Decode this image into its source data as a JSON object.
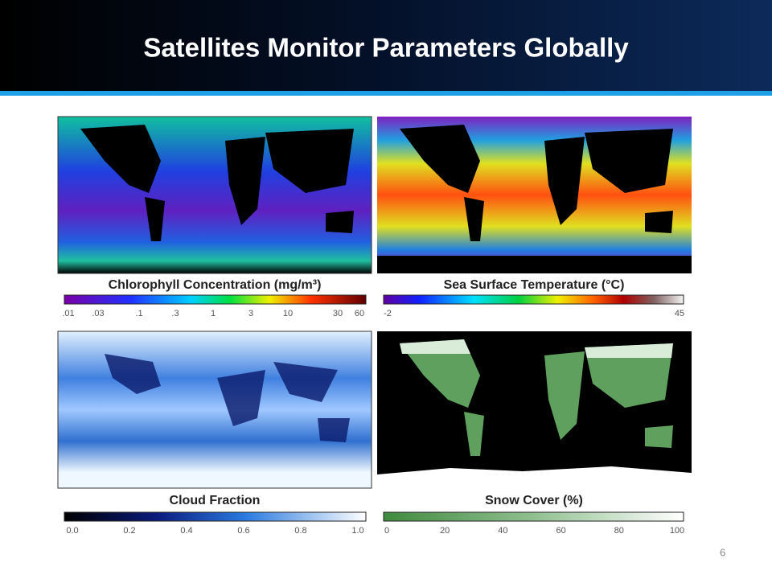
{
  "title": "Satellites Monitor Parameters Globally",
  "page_number": 6,
  "panels": [
    {
      "label": "Chlorophyll Concentration (mg/m³)",
      "ticks": [
        ".01",
        ".03",
        ".1",
        ".3",
        "1",
        "3",
        "10",
        "30",
        "60"
      ]
    },
    {
      "label": "Sea Surface Temperature (°C)",
      "ticks": [
        "-2",
        "45"
      ]
    },
    {
      "label": "Cloud Fraction",
      "ticks": [
        "0.0",
        "0.2",
        "0.4",
        "0.6",
        "0.8",
        "1.0"
      ]
    },
    {
      "label": "Snow Cover (%)",
      "ticks": [
        "0",
        "20",
        "40",
        "60",
        "80",
        "100"
      ]
    }
  ]
}
